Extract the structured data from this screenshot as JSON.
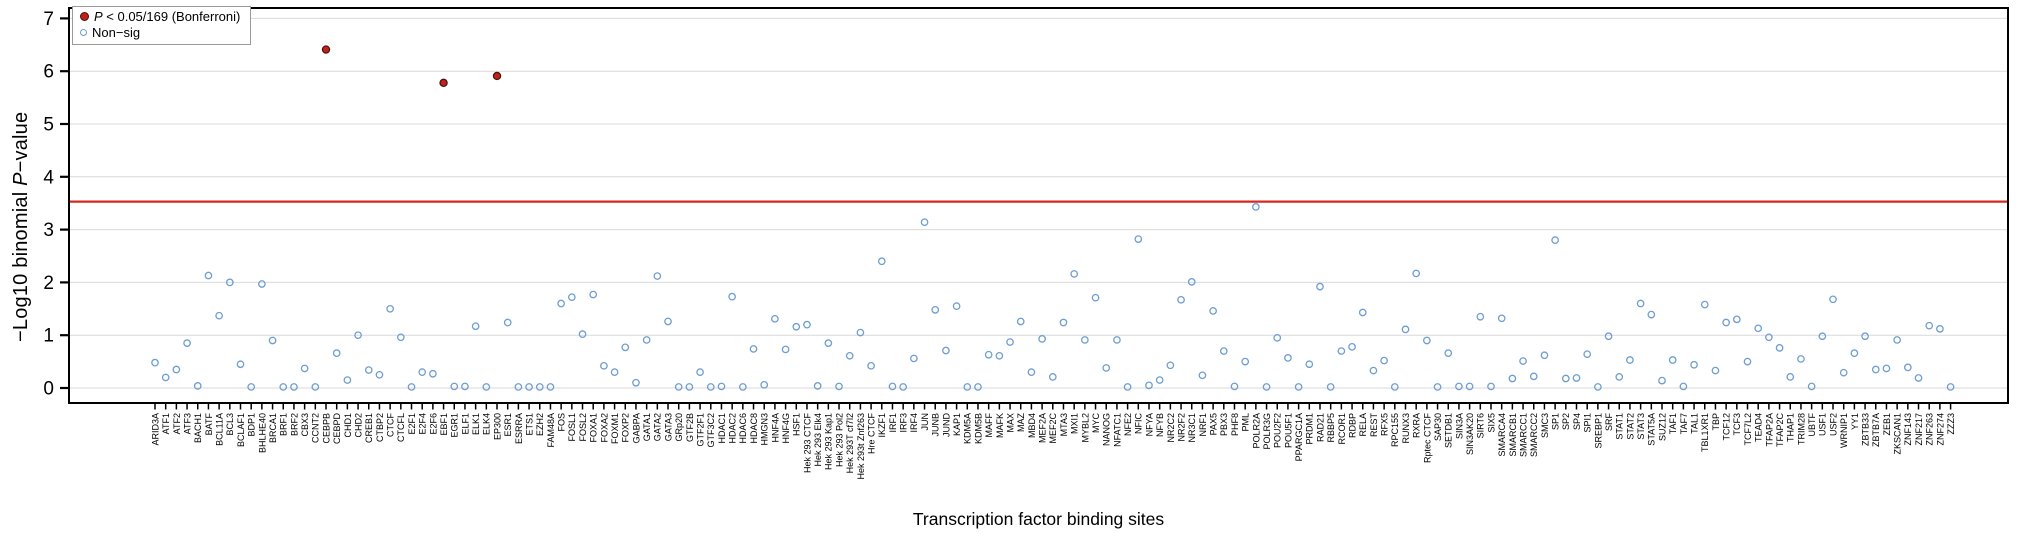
{
  "axes": {
    "ylabel_prefix": "−Log10 binomial ",
    "ylabel_p": "P",
    "ylabel_suffix": "−value",
    "xlabel": "Transcription factor binding sites"
  },
  "legend": {
    "sig_p": "P",
    "sig_rest": " < 0.05/169 (Bonferroni)",
    "nonsig_label": "Non−sig"
  },
  "chart_data": {
    "type": "scatter",
    "title": "",
    "xlabel": "Transcription factor binding sites",
    "ylabel": "-Log10 binomial P-value",
    "ylim": [
      0,
      7
    ],
    "yticks": [
      0,
      1,
      2,
      3,
      4,
      5,
      6,
      7
    ],
    "grid": true,
    "legend_position": "top-left",
    "threshold_line": {
      "value": 3.53,
      "label": "P = 0.05/169 (Bonferroni)"
    },
    "colors": {
      "significant_fill": "#bf2218",
      "significant_stroke": "#471010",
      "nonsig_stroke": "#6d9dd1",
      "threshold": "#d3291f",
      "grid": "#d9d9d9",
      "axis": "#000000"
    },
    "significant": [
      "CEBPB",
      "EBF1",
      "EP300"
    ],
    "categories": [
      "ARID3A",
      "ATF1",
      "ATF2",
      "ATF3",
      "BACH1",
      "BATF",
      "BCL11A",
      "BCL3",
      "BCLAF1",
      "BDP1",
      "BHLHE40",
      "BRCA1",
      "BRF1",
      "BRF2",
      "CBX3",
      "CCNT2",
      "CEBPB",
      "CEBPD",
      "CHD1",
      "CHD2",
      "CREB1",
      "CTBP2",
      "CTCF",
      "CTCFL",
      "E2F1",
      "E2F4",
      "E2F6",
      "EBF1",
      "EGR1",
      "ELF1",
      "ELK1",
      "ELK4",
      "EP300",
      "ESR1",
      "ESRRA",
      "ETS1",
      "EZH2",
      "FAM48A",
      "FOS",
      "FOSL1",
      "FOSL2",
      "FOXA1",
      "FOXA2",
      "FOXM1",
      "FOXP2",
      "GABPA",
      "GATA1",
      "GATA2",
      "GATA3",
      "GRp20",
      "GTF2B",
      "GTF2F1",
      "GTF3C2",
      "HDAC1",
      "HDAC2",
      "HDAC6",
      "HDAC8",
      "HMGN3",
      "HNF4A",
      "HNF4G",
      "HSF1",
      "Hek 293 CTCF",
      "Hek 293 Elk4",
      "Hek 293 Kap1",
      "Hek 293 Pol2",
      "Hek 293T cf7l2",
      "Hek 293t Znf263",
      "Hre CTCF",
      "IKZF1",
      "IRF1",
      "IRF3",
      "IRF4",
      "JUN",
      "JUNB",
      "JUND",
      "KAP1",
      "KDM5A",
      "KDM5B",
      "MAFF",
      "MAFK",
      "MAX",
      "MAZ",
      "MBD4",
      "MEF2A",
      "MEF2C",
      "MTA3",
      "MXI1",
      "MYBL2",
      "MYC",
      "NANOG",
      "NFATC1",
      "NFE2",
      "NFIC",
      "NFYA",
      "NFYB",
      "NR2C2",
      "NR2F2",
      "NR3C1",
      "NRF1",
      "PAX5",
      "PBX3",
      "PHF8",
      "PML",
      "POLR2A",
      "POLR3G",
      "POU2F2",
      "POU5F1",
      "PPARGC1A",
      "PRDM1",
      "RAD21",
      "RBBP5",
      "RCOR1",
      "RDBP",
      "RELA",
      "REST",
      "RFX5",
      "RPC155",
      "RUNX3",
      "RXRA",
      "Rptec CTCF",
      "SAP30",
      "SETDB1",
      "SIN3A",
      "SIN3AK20",
      "SIRT6",
      "SIX5",
      "SMARCA4",
      "SMARCB1",
      "SMARCC1",
      "SMARCC2",
      "SMC3",
      "SP1",
      "SP2",
      "SP4",
      "SPI1",
      "SREBP1",
      "SRF",
      "STAT1",
      "STAT2",
      "STAT3",
      "STAT5A",
      "SUZ12",
      "TAF1",
      "TAF7",
      "TAL1",
      "TBL1XR1",
      "TBP",
      "TCF12",
      "TCF3",
      "TCF7L2",
      "TEAD4",
      "TFAP2A",
      "TFAP2C",
      "THAP1",
      "TRIM28",
      "UBTF",
      "USF1",
      "USF2",
      "WRNIP1",
      "YY1",
      "ZBTB33",
      "ZBTB7A",
      "ZEB1",
      "ZKSCAN1",
      "ZNF143",
      "ZNF217",
      "ZNF263",
      "ZNF274",
      "ZZZ3"
    ],
    "values": [
      0.48,
      0.2,
      0.35,
      0.85,
      0.04,
      2.13,
      1.37,
      2.0,
      0.45,
      0.02,
      1.97,
      0.9,
      0.02,
      0.02,
      0.37,
      0.02,
      6.41,
      0.66,
      0.15,
      1.0,
      0.34,
      0.25,
      1.5,
      0.96,
      0.02,
      0.3,
      0.27,
      5.78,
      0.03,
      0.03,
      1.17,
      0.02,
      5.91,
      1.24,
      0.02,
      0.02,
      0.02,
      0.02,
      1.6,
      1.72,
      1.02,
      1.77,
      0.42,
      0.3,
      0.77,
      0.1,
      0.91,
      2.12,
      1.26,
      0.02,
      0.02,
      0.3,
      0.02,
      0.03,
      1.73,
      0.02,
      0.74,
      0.06,
      1.31,
      0.73,
      1.16,
      1.2,
      0.04,
      0.85,
      0.03,
      0.61,
      1.05,
      0.42,
      2.4,
      0.03,
      0.02,
      0.56,
      3.14,
      1.48,
      0.71,
      1.55,
      0.02,
      0.02,
      0.63,
      0.61,
      0.87,
      1.26,
      0.3,
      0.93,
      0.21,
      1.24,
      2.16,
      0.91,
      1.71,
      0.38,
      0.91,
      0.02,
      2.82,
      0.05,
      0.15,
      0.43,
      1.67,
      2.01,
      0.24,
      1.46,
      0.7,
      0.03,
      0.5,
      3.43,
      0.02,
      0.95,
      0.57,
      0.02,
      0.45,
      1.92,
      0.02,
      0.7,
      0.78,
      1.43,
      0.33,
      0.52,
      0.02,
      1.11,
      2.17,
      0.9,
      0.02,
      0.66,
      0.03,
      0.03,
      1.35,
      0.03,
      1.32,
      0.18,
      0.51,
      0.22,
      0.62,
      2.8,
      0.18,
      0.19,
      0.64,
      0.02,
      0.98,
      0.21,
      0.53,
      1.6,
      1.39,
      0.14,
      0.53,
      0.03,
      0.44,
      1.58,
      0.33,
      1.24,
      1.3,
      0.5,
      1.13,
      0.96,
      0.76,
      0.21,
      0.55,
      0.03,
      0.98,
      1.68,
      0.29,
      0.66,
      0.98,
      0.35,
      0.37,
      0.91,
      0.39,
      0.19,
      1.18,
      1.12,
      0.02
    ]
  }
}
